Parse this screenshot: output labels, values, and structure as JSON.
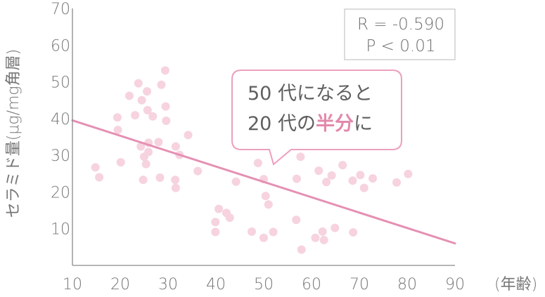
{
  "chart_data": {
    "type": "scatter",
    "xlabel": "(年齢)",
    "ylabel": "セラミド量(μg/mg角層)",
    "xlim": [
      10,
      90
    ],
    "ylim": [
      0,
      70
    ],
    "x_ticks": [
      "10",
      "20",
      "30",
      "40",
      "50",
      "60",
      "70",
      "80",
      "90"
    ],
    "y_ticks": [
      "10",
      "20",
      "30",
      "40",
      "50",
      "60",
      "70"
    ],
    "colors": {
      "points": "#f6d3df",
      "regression": "#e590b3",
      "axis": "#8a8a8a",
      "callout_border": "#ec9fbd",
      "accent": "#e289ab"
    },
    "stats": {
      "r": "R = -0.590",
      "p": "P < 0.01"
    },
    "callout": {
      "line1": "50 代になると",
      "line2_pre": "20 代の",
      "line2_accent": "半分",
      "line2_post": "に"
    },
    "regression": {
      "x": [
        10,
        90
      ],
      "y": [
        39.5,
        6.0
      ]
    },
    "points": [
      {
        "x": 14.8,
        "y": 26.7
      },
      {
        "x": 15.6,
        "y": 24.0
      },
      {
        "x": 19.4,
        "y": 40.3
      },
      {
        "x": 19.5,
        "y": 36.9
      },
      {
        "x": 20.1,
        "y": 28.1
      },
      {
        "x": 21.9,
        "y": 46.2
      },
      {
        "x": 23.1,
        "y": 40.9
      },
      {
        "x": 23.8,
        "y": 49.6
      },
      {
        "x": 24.3,
        "y": 32.4
      },
      {
        "x": 24.5,
        "y": 45.0
      },
      {
        "x": 24.8,
        "y": 23.3
      },
      {
        "x": 25.0,
        "y": 29.6
      },
      {
        "x": 25.4,
        "y": 27.6
      },
      {
        "x": 25.6,
        "y": 47.4
      },
      {
        "x": 25.7,
        "y": 42.3
      },
      {
        "x": 25.9,
        "y": 33.4
      },
      {
        "x": 25.9,
        "y": 30.9
      },
      {
        "x": 26.8,
        "y": 40.6
      },
      {
        "x": 28.0,
        "y": 33.6
      },
      {
        "x": 28.3,
        "y": 23.9
      },
      {
        "x": 28.6,
        "y": 49.2
      },
      {
        "x": 29.4,
        "y": 53.1
      },
      {
        "x": 29.5,
        "y": 43.3
      },
      {
        "x": 29.6,
        "y": 39.4
      },
      {
        "x": 31.5,
        "y": 23.3
      },
      {
        "x": 31.6,
        "y": 32.4
      },
      {
        "x": 31.6,
        "y": 21.1
      },
      {
        "x": 32.4,
        "y": 30.1
      },
      {
        "x": 34.2,
        "y": 35.5
      },
      {
        "x": 36.2,
        "y": 25.7
      },
      {
        "x": 39.9,
        "y": 11.8
      },
      {
        "x": 39.9,
        "y": 9.1
      },
      {
        "x": 40.6,
        "y": 15.4
      },
      {
        "x": 42.2,
        "y": 14.3
      },
      {
        "x": 42.9,
        "y": 13.0
      },
      {
        "x": 44.2,
        "y": 22.8
      },
      {
        "x": 47.5,
        "y": 9.2
      },
      {
        "x": 48.8,
        "y": 27.9
      },
      {
        "x": 50.0,
        "y": 23.5
      },
      {
        "x": 50.0,
        "y": 7.5
      },
      {
        "x": 50.4,
        "y": 18.9
      },
      {
        "x": 51.0,
        "y": 16.6
      },
      {
        "x": 52.0,
        "y": 9.1
      },
      {
        "x": 56.8,
        "y": 12.4
      },
      {
        "x": 56.9,
        "y": 23.6
      },
      {
        "x": 57.7,
        "y": 29.6
      },
      {
        "x": 57.9,
        "y": 4.3
      },
      {
        "x": 60.8,
        "y": 7.5
      },
      {
        "x": 61.5,
        "y": 25.8
      },
      {
        "x": 62.3,
        "y": 9.2
      },
      {
        "x": 62.6,
        "y": 6.9
      },
      {
        "x": 63.1,
        "y": 22.7
      },
      {
        "x": 64.2,
        "y": 24.5
      },
      {
        "x": 64.9,
        "y": 10.2
      },
      {
        "x": 66.5,
        "y": 27.3
      },
      {
        "x": 68.6,
        "y": 23.1
      },
      {
        "x": 68.7,
        "y": 9.0
      },
      {
        "x": 70.2,
        "y": 24.6
      },
      {
        "x": 71.0,
        "y": 21.1
      },
      {
        "x": 72.8,
        "y": 23.7
      },
      {
        "x": 77.8,
        "y": 22.6
      },
      {
        "x": 80.2,
        "y": 24.9
      }
    ]
  }
}
